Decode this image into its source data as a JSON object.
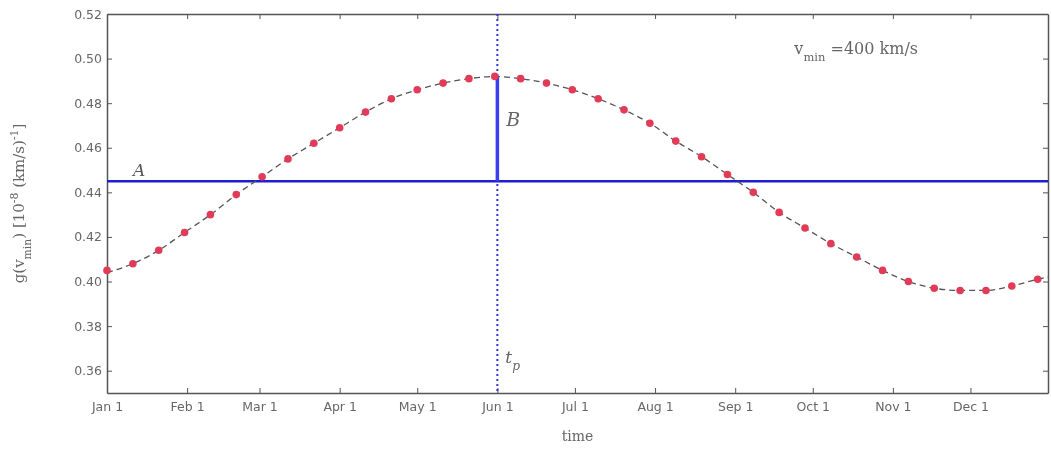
{
  "chart_data": {
    "type": "scatter",
    "xlabel": "time",
    "ylabel": "g(v$_{min}$) [10$^{-8}$ (km/s)$^{-1}$]",
    "xlim": [
      "--01-01",
      "--12-31"
    ],
    "ylim": [
      0.35,
      0.52
    ],
    "xticks": [
      {
        "value": "--01-01",
        "label": "Jan 1"
      },
      {
        "value": "--02-01",
        "label": "Feb 1"
      },
      {
        "value": "--03-01",
        "label": "Mar 1"
      },
      {
        "value": "--04-01",
        "label": "Apr 1"
      },
      {
        "value": "--05-01",
        "label": "May 1"
      },
      {
        "value": "--06-01",
        "label": "Jun 1"
      },
      {
        "value": "--07-01",
        "label": "Jul 1"
      },
      {
        "value": "--08-01",
        "label": "Aug 1"
      },
      {
        "value": "--09-01",
        "label": "Sep 1"
      },
      {
        "value": "--10-01",
        "label": "Oct 1"
      },
      {
        "value": "--11-01",
        "label": "Nov 1"
      },
      {
        "value": "--12-01",
        "label": "Dec 1"
      }
    ],
    "yticks": [
      0.36,
      0.38,
      {
        "value": 0.4,
        "label": "0.40"
      },
      0.42,
      0.44,
      0.46,
      0.48,
      {
        "value": 0.5,
        "label": "0.50"
      },
      0.52
    ],
    "series": [
      {
        "type": "line",
        "color": "#555555",
        "line_style": "dashed",
        "x": [
          "--01-01",
          "--01-11",
          "--01-21",
          "--01-31",
          "--02-10",
          "--02-20",
          "--03-02",
          "--03-12",
          "--03-22",
          "--04-01",
          "--04-11",
          "--04-21",
          "--05-01",
          "--05-11",
          "--05-21",
          "--05-31",
          "--06-10",
          "--06-20",
          "--06-30",
          "--07-10",
          "--07-20",
          "--07-30",
          "--08-09",
          "--08-19",
          "--08-29",
          "--09-08",
          "--09-18",
          "--09-28",
          "--10-08",
          "--10-18",
          "--10-28",
          "--11-07",
          "--11-17",
          "--11-27",
          "--12-07",
          "--12-17",
          "--12-27",
          "--12-31"
        ],
        "values": [
          0.404,
          0.408,
          0.414,
          0.422,
          0.43,
          0.439,
          0.447,
          0.455,
          0.462,
          0.469,
          0.476,
          0.482,
          0.486,
          0.489,
          0.491,
          0.492,
          0.491,
          0.489,
          0.486,
          0.482,
          0.477,
          0.471,
          0.463,
          0.456,
          0.448,
          0.44,
          0.431,
          0.424,
          0.417,
          0.411,
          0.405,
          0.4,
          0.397,
          0.396,
          0.396,
          0.398,
          0.401,
          0.402
        ]
      },
      {
        "type": "line",
        "color": "#3c3cf0",
        "line_style": "solid",
        "x": [
          "--06-01",
          "--06-01"
        ],
        "values": [
          0.445,
          0.492
        ]
      },
      {
        "color": "#e23b57",
        "marker": "circle",
        "x": [
          "--01-01",
          "--01-11",
          "--01-21",
          "--01-31",
          "--02-10",
          "--02-20",
          "--03-02",
          "--03-12",
          "--03-22",
          "--04-01",
          "--04-11",
          "--04-21",
          "--05-01",
          "--05-11",
          "--05-21",
          "--05-31",
          "--06-10",
          "--06-20",
          "--06-30",
          "--07-10",
          "--07-20",
          "--07-30",
          "--08-09",
          "--08-19",
          "--08-29",
          "--09-08",
          "--09-18",
          "--09-28",
          "--10-08",
          "--10-18",
          "--10-28",
          "--11-07",
          "--11-17",
          "--11-27",
          "--12-07",
          "--12-17",
          "--12-27"
        ],
        "values": [
          0.405,
          0.408,
          0.414,
          0.422,
          0.43,
          0.439,
          0.447,
          0.455,
          0.462,
          0.469,
          0.476,
          0.482,
          0.486,
          0.489,
          0.491,
          0.492,
          0.491,
          0.489,
          0.486,
          0.482,
          0.477,
          0.471,
          0.463,
          0.456,
          0.448,
          0.44,
          0.431,
          0.424,
          0.417,
          0.411,
          0.405,
          0.4,
          0.397,
          0.396,
          0.396,
          0.398,
          0.401
        ]
      }
    ],
    "ref_lines": [
      {
        "axis": "y",
        "value": 0.445,
        "label": "A",
        "color": "#1f1fd1",
        "line_style": "solid"
      },
      {
        "axis": "x",
        "value": "--06-01",
        "label": "t$_{p}$",
        "color": "#3333dd",
        "line_style": "dotted"
      }
    ],
    "annotations": [
      {
        "text": "B",
        "x": "--06-01",
        "y": 0.472
      },
      "v$_{min}$ =400 km/s"
    ]
  }
}
